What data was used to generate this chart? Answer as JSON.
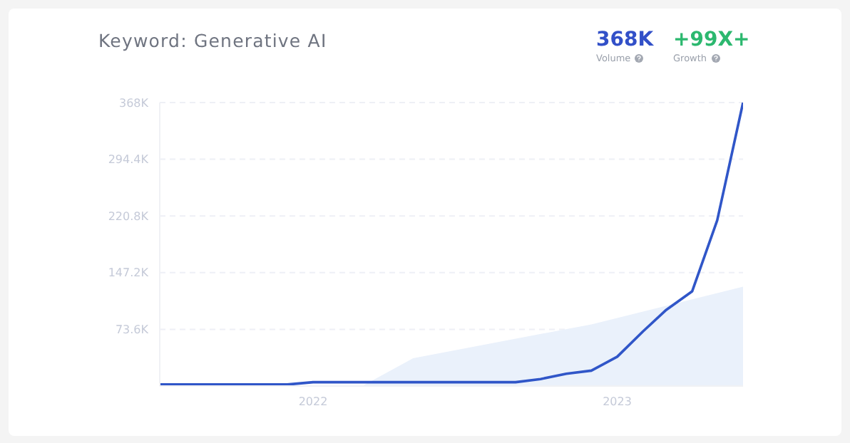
{
  "chart_data": {
    "type": "line",
    "title": "Keyword: Generative AI",
    "annotations": [
      "368K",
      "Volume",
      "+99X+",
      "Growth"
    ],
    "series": [
      {
        "color": "#3056c8",
        "x": [
          "2021-07",
          "2021-08",
          "2021-09",
          "2021-10",
          "2021-11",
          "2021-12",
          "2022-01",
          "2022-02",
          "2022-03",
          "2022-04",
          "2022-05",
          "2022-06",
          "2022-07",
          "2022-08",
          "2022-09",
          "2022-10",
          "2022-11",
          "2022-12",
          "2023-01",
          "2023-02",
          "2023-03",
          "2023-04",
          "2023-05",
          "2023-06"
        ],
        "values": [
          2000,
          2000,
          2000,
          2000,
          2000,
          2000,
          5000,
          5000,
          5000,
          5000,
          5000,
          5000,
          5000,
          5000,
          5000,
          9000,
          16000,
          20000,
          38000,
          71000,
          99000,
          123000,
          215000,
          368000
        ]
      },
      {
        "type": "area",
        "color": "#eaf1fb",
        "x": [
          "2022-03",
          "2022-05",
          "2022-08",
          "2022-12",
          "2023-06"
        ],
        "values": [
          0,
          36000,
          55000,
          80000,
          129000
        ]
      }
    ],
    "xlim": [
      "2021-07",
      "2023-06"
    ],
    "xticks": [
      "2022",
      "2023"
    ],
    "ylim": [
      0,
      368000
    ],
    "yticks": [
      {
        "value": 73600,
        "label": "73.6K"
      },
      {
        "value": 147200,
        "label": "147.2K"
      },
      {
        "value": 220800,
        "label": "220.8K"
      },
      {
        "value": 294400,
        "label": "294.4K"
      },
      {
        "value": 368000,
        "label": "368K"
      }
    ],
    "grid": "y",
    "legend": false
  }
}
